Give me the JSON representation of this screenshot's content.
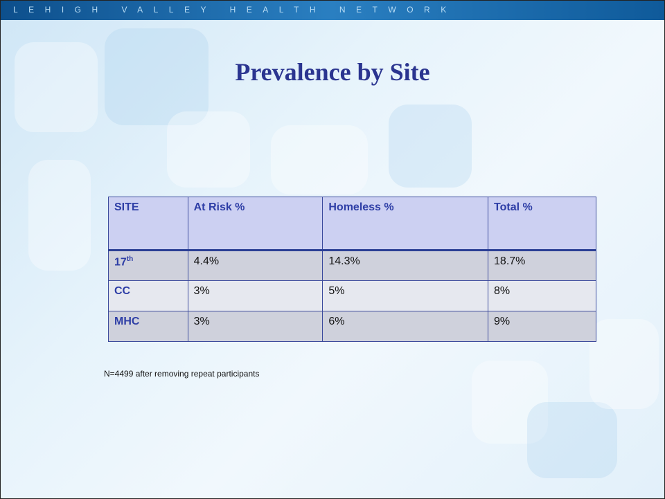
{
  "header": {
    "brand": "LEHIGH VALLEY HEALTH NETWORK",
    "title": "Prevalence by Site"
  },
  "table": {
    "columns": [
      "SITE",
      "At Risk %",
      "Homeless %",
      "Total %"
    ],
    "rows": [
      [
        {
          "base": "17",
          "sup": "th"
        },
        "4.4%",
        "14.3%",
        "18.7%"
      ],
      [
        "CC",
        "3%",
        "5%",
        "8%"
      ],
      [
        "MHC",
        "3%",
        "6%",
        "9%"
      ]
    ]
  },
  "note": "N=4499 after removing repeat participants"
}
